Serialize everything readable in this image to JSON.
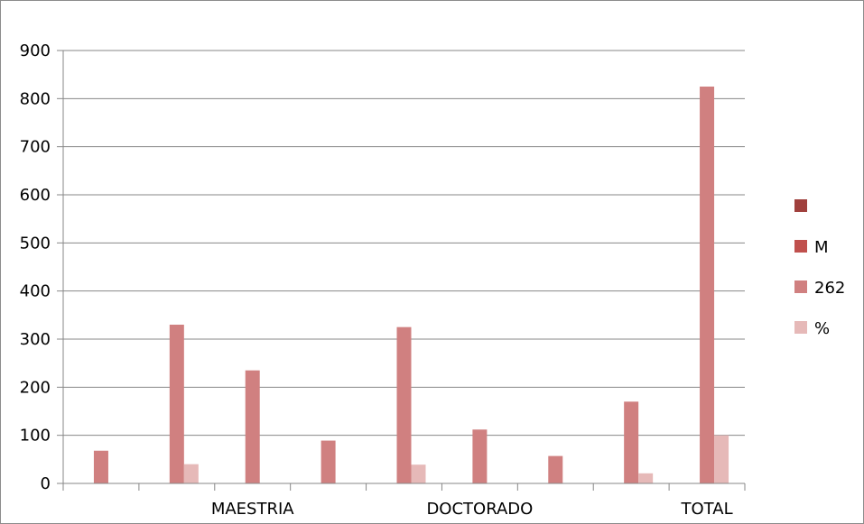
{
  "chart_data": {
    "type": "bar",
    "title": "",
    "xlabel": "",
    "ylabel": "",
    "ylim": [
      0,
      900
    ],
    "yticks": [
      0,
      100,
      200,
      300,
      400,
      500,
      600,
      700,
      800,
      900
    ],
    "grid": true,
    "legend_position": "right",
    "categories": [
      "",
      "MAESTRIA",
      "",
      "DOCTORADO",
      "",
      "TOTAL"
    ],
    "series": [
      {
        "name": "",
        "color": "#a0403d",
        "values": [
          0,
          0,
          0,
          0,
          0,
          0
        ]
      },
      {
        "name": "M",
        "color": "#c0504d",
        "values": [
          0,
          0,
          0,
          0,
          0,
          0
        ]
      },
      {
        "name": "262",
        "color": "#d08080",
        "values": [
          68,
          330,
          235,
          89,
          325,
          112
        ]
      },
      {
        "name": "%",
        "color": "#e6b9b8",
        "values": [
          0,
          40,
          0,
          0,
          39,
          0
        ]
      }
    ],
    "extra_bars": {
      "note_series": "262 / %",
      "groups": [
        {
          "index": 6,
          "values_262": 57,
          "values_pct": 0
        },
        {
          "index": 7,
          "values_262": 170,
          "values_pct": 21
        },
        {
          "index": 8,
          "values_262": 825,
          "values_pct": 100
        }
      ]
    }
  }
}
